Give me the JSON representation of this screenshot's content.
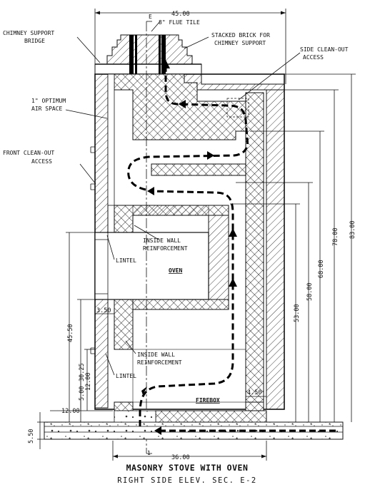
{
  "labels": {
    "chimney_support_bridge": [
      "CHIMNEY SUPPORT",
      "BRIDGE"
    ],
    "flue_tile": "8\" FLUE TILE",
    "stacked_brick": [
      "STACKED BRICK FOR",
      "CHIMNEY SUPPORT"
    ],
    "side_cleanout": [
      "SIDE CLEAN-OUT",
      "ACCESS"
    ],
    "air_space": [
      "1\" OPTIMUM",
      "AIR SPACE"
    ],
    "front_cleanout": [
      "FRONT CLEAN-OUT",
      "ACCESS"
    ],
    "inside_wall_upper": [
      "INSIDE WALL",
      "REINFORCEMENT"
    ],
    "lintel_upper": "LINTEL",
    "oven": "OVEN",
    "inside_wall_lower": [
      "INSIDE WALL",
      "REINFORCEMENT"
    ],
    "lintel_lower": "LINTEL",
    "firebox": "FIREBOX",
    "centerline_top": "E",
    "centerline_bottom": "1"
  },
  "dimensions": {
    "width_top": "45.00",
    "width_bottom": "36.00",
    "h_83": "83.00",
    "h_78": "78.00",
    "h_68": "68.00",
    "h_58": "58.00",
    "h_53": "53.00",
    "h_45_50": "45.50",
    "h_30_25": "30.25",
    "h_12": "12.00",
    "h_5": "5.00",
    "h_5_50": "5.50",
    "w_12": "12.00",
    "w_3_50": "3.50",
    "w_4_50": "4.50"
  },
  "title": "MASONRY STOVE WITH OVEN",
  "subtitle": "RIGHT SIDE ELEV. SEC. E-2"
}
